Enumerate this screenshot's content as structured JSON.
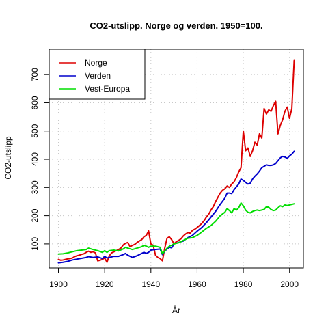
{
  "chart_data": {
    "type": "line",
    "title": "CO2-utslipp. Norge og verden. 1950=100.",
    "xlabel": "År",
    "ylabel": "CO2-utslipp",
    "xlim": [
      1896,
      2006
    ],
    "ylim": [
      15,
      790
    ],
    "xticks": [
      1900,
      1920,
      1940,
      1960,
      1980,
      2000
    ],
    "yticks": [
      100,
      200,
      300,
      400,
      500,
      600,
      700
    ],
    "grid": true,
    "legend_position": "top-left",
    "series": [
      {
        "name": "Norge",
        "color": "#dd0000",
        "points": [
          [
            1900,
            45
          ],
          [
            1901,
            42
          ],
          [
            1902,
            43
          ],
          [
            1903,
            45
          ],
          [
            1904,
            47
          ],
          [
            1905,
            48
          ],
          [
            1906,
            50
          ],
          [
            1907,
            55
          ],
          [
            1908,
            58
          ],
          [
            1909,
            60
          ],
          [
            1910,
            63
          ],
          [
            1911,
            65
          ],
          [
            1912,
            70
          ],
          [
            1913,
            74
          ],
          [
            1914,
            70
          ],
          [
            1915,
            72
          ],
          [
            1916,
            68
          ],
          [
            1917,
            40
          ],
          [
            1918,
            42
          ],
          [
            1919,
            45
          ],
          [
            1920,
            50
          ],
          [
            1921,
            35
          ],
          [
            1922,
            58
          ],
          [
            1923,
            68
          ],
          [
            1924,
            72
          ],
          [
            1925,
            76
          ],
          [
            1926,
            80
          ],
          [
            1927,
            85
          ],
          [
            1928,
            96
          ],
          [
            1929,
            102
          ],
          [
            1930,
            105
          ],
          [
            1931,
            90
          ],
          [
            1932,
            95
          ],
          [
            1933,
            98
          ],
          [
            1934,
            105
          ],
          [
            1935,
            110
          ],
          [
            1936,
            115
          ],
          [
            1937,
            125
          ],
          [
            1938,
            130
          ],
          [
            1939,
            146
          ],
          [
            1940,
            100
          ],
          [
            1941,
            95
          ],
          [
            1942,
            60
          ],
          [
            1943,
            52
          ],
          [
            1944,
            48
          ],
          [
            1945,
            40
          ],
          [
            1946,
            85
          ],
          [
            1947,
            120
          ],
          [
            1948,
            125
          ],
          [
            1949,
            115
          ],
          [
            1950,
            100
          ],
          [
            1951,
            108
          ],
          [
            1952,
            112
          ],
          [
            1953,
            118
          ],
          [
            1954,
            128
          ],
          [
            1955,
            135
          ],
          [
            1956,
            140
          ],
          [
            1957,
            138
          ],
          [
            1958,
            148
          ],
          [
            1959,
            152
          ],
          [
            1960,
            158
          ],
          [
            1961,
            165
          ],
          [
            1962,
            172
          ],
          [
            1963,
            182
          ],
          [
            1964,
            195
          ],
          [
            1965,
            205
          ],
          [
            1966,
            220
          ],
          [
            1967,
            232
          ],
          [
            1968,
            250
          ],
          [
            1969,
            265
          ],
          [
            1970,
            280
          ],
          [
            1971,
            290
          ],
          [
            1972,
            295
          ],
          [
            1973,
            305
          ],
          [
            1974,
            300
          ],
          [
            1975,
            312
          ],
          [
            1976,
            320
          ],
          [
            1977,
            335
          ],
          [
            1978,
            355
          ],
          [
            1979,
            370
          ],
          [
            1980,
            500
          ],
          [
            1981,
            430
          ],
          [
            1982,
            440
          ],
          [
            1983,
            410
          ],
          [
            1984,
            430
          ],
          [
            1985,
            460
          ],
          [
            1986,
            450
          ],
          [
            1987,
            490
          ],
          [
            1988,
            475
          ],
          [
            1989,
            580
          ],
          [
            1990,
            560
          ],
          [
            1991,
            575
          ],
          [
            1992,
            570
          ],
          [
            1993,
            590
          ],
          [
            1994,
            605
          ],
          [
            1995,
            490
          ],
          [
            1996,
            520
          ],
          [
            1997,
            540
          ],
          [
            1998,
            570
          ],
          [
            1999,
            585
          ],
          [
            2000,
            545
          ],
          [
            2001,
            580
          ],
          [
            2002,
            750
          ]
        ]
      },
      {
        "name": "Verden",
        "color": "#0000cc",
        "points": [
          [
            1900,
            33
          ],
          [
            1902,
            35
          ],
          [
            1904,
            38
          ],
          [
            1906,
            43
          ],
          [
            1908,
            46
          ],
          [
            1910,
            49
          ],
          [
            1912,
            52
          ],
          [
            1913,
            55
          ],
          [
            1915,
            52
          ],
          [
            1917,
            54
          ],
          [
            1919,
            48
          ],
          [
            1920,
            56
          ],
          [
            1921,
            50
          ],
          [
            1922,
            52
          ],
          [
            1924,
            56
          ],
          [
            1926,
            56
          ],
          [
            1928,
            62
          ],
          [
            1929,
            66
          ],
          [
            1930,
            60
          ],
          [
            1931,
            56
          ],
          [
            1932,
            52
          ],
          [
            1934,
            58
          ],
          [
            1936,
            66
          ],
          [
            1937,
            70
          ],
          [
            1938,
            66
          ],
          [
            1939,
            70
          ],
          [
            1940,
            78
          ],
          [
            1942,
            80
          ],
          [
            1944,
            82
          ],
          [
            1945,
            62
          ],
          [
            1946,
            74
          ],
          [
            1947,
            82
          ],
          [
            1948,
            88
          ],
          [
            1949,
            86
          ],
          [
            1950,
            100
          ],
          [
            1952,
            105
          ],
          [
            1954,
            110
          ],
          [
            1956,
            122
          ],
          [
            1958,
            130
          ],
          [
            1960,
            145
          ],
          [
            1962,
            158
          ],
          [
            1964,
            175
          ],
          [
            1966,
            195
          ],
          [
            1968,
            215
          ],
          [
            1970,
            240
          ],
          [
            1972,
            262
          ],
          [
            1973,
            280
          ],
          [
            1974,
            280
          ],
          [
            1975,
            278
          ],
          [
            1976,
            292
          ],
          [
            1977,
            302
          ],
          [
            1978,
            312
          ],
          [
            1979,
            330
          ],
          [
            1980,
            325
          ],
          [
            1981,
            318
          ],
          [
            1982,
            312
          ],
          [
            1983,
            315
          ],
          [
            1984,
            330
          ],
          [
            1985,
            340
          ],
          [
            1986,
            348
          ],
          [
            1987,
            358
          ],
          [
            1988,
            370
          ],
          [
            1989,
            375
          ],
          [
            1990,
            380
          ],
          [
            1991,
            378
          ],
          [
            1992,
            378
          ],
          [
            1993,
            380
          ],
          [
            1994,
            385
          ],
          [
            1995,
            395
          ],
          [
            1996,
            405
          ],
          [
            1997,
            410
          ],
          [
            1998,
            408
          ],
          [
            1999,
            403
          ],
          [
            2000,
            412
          ],
          [
            2001,
            418
          ],
          [
            2002,
            428
          ]
        ]
      },
      {
        "name": "Vest-Europa",
        "color": "#00dd00",
        "points": [
          [
            1900,
            64
          ],
          [
            1902,
            65
          ],
          [
            1904,
            68
          ],
          [
            1906,
            72
          ],
          [
            1908,
            76
          ],
          [
            1910,
            78
          ],
          [
            1912,
            80
          ],
          [
            1913,
            85
          ],
          [
            1915,
            80
          ],
          [
            1917,
            76
          ],
          [
            1919,
            70
          ],
          [
            1920,
            76
          ],
          [
            1921,
            70
          ],
          [
            1922,
            76
          ],
          [
            1924,
            78
          ],
          [
            1926,
            75
          ],
          [
            1928,
            82
          ],
          [
            1929,
            88
          ],
          [
            1930,
            85
          ],
          [
            1932,
            80
          ],
          [
            1934,
            85
          ],
          [
            1936,
            90
          ],
          [
            1937,
            95
          ],
          [
            1938,
            92
          ],
          [
            1939,
            88
          ],
          [
            1940,
            92
          ],
          [
            1942,
            92
          ],
          [
            1944,
            88
          ],
          [
            1945,
            65
          ],
          [
            1946,
            75
          ],
          [
            1947,
            85
          ],
          [
            1948,
            92
          ],
          [
            1949,
            95
          ],
          [
            1950,
            100
          ],
          [
            1952,
            104
          ],
          [
            1954,
            112
          ],
          [
            1956,
            120
          ],
          [
            1958,
            122
          ],
          [
            1960,
            130
          ],
          [
            1962,
            142
          ],
          [
            1964,
            155
          ],
          [
            1966,
            165
          ],
          [
            1968,
            180
          ],
          [
            1970,
            200
          ],
          [
            1972,
            212
          ],
          [
            1973,
            225
          ],
          [
            1974,
            218
          ],
          [
            1975,
            210
          ],
          [
            1976,
            225
          ],
          [
            1977,
            220
          ],
          [
            1978,
            228
          ],
          [
            1979,
            245
          ],
          [
            1980,
            235
          ],
          [
            1981,
            220
          ],
          [
            1982,
            212
          ],
          [
            1983,
            210
          ],
          [
            1984,
            215
          ],
          [
            1985,
            218
          ],
          [
            1986,
            220
          ],
          [
            1987,
            218
          ],
          [
            1988,
            220
          ],
          [
            1989,
            222
          ],
          [
            1990,
            232
          ],
          [
            1991,
            230
          ],
          [
            1992,
            222
          ],
          [
            1993,
            218
          ],
          [
            1994,
            220
          ],
          [
            1995,
            228
          ],
          [
            1996,
            235
          ],
          [
            1997,
            232
          ],
          [
            1998,
            238
          ],
          [
            1999,
            236
          ],
          [
            2000,
            238
          ],
          [
            2001,
            240
          ],
          [
            2002,
            242
          ]
        ]
      }
    ]
  }
}
